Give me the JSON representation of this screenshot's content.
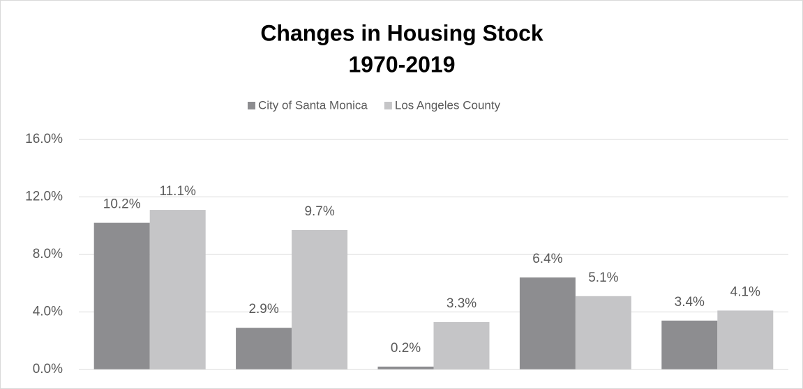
{
  "chart_data": {
    "type": "bar",
    "title": "Changes in Housing Stock",
    "subtitle": "1970-2019",
    "categories": [
      null,
      null,
      null,
      null,
      null
    ],
    "series": [
      {
        "name": "City of Santa Monica",
        "color": "#8d8d90",
        "values": [
          10.2,
          2.9,
          0.2,
          6.4,
          3.4
        ],
        "value_labels": [
          "10.2%",
          "2.9%",
          "0.2%",
          "6.4%",
          "3.4%"
        ]
      },
      {
        "name": "Los Angeles County",
        "color": "#c5c5c7",
        "values": [
          11.1,
          9.7,
          3.3,
          5.1,
          4.1
        ],
        "value_labels": [
          "11.1%",
          "9.7%",
          "3.3%",
          "5.1%",
          "4.1%"
        ]
      }
    ],
    "ylim": [
      0,
      16
    ],
    "yticks": [
      {
        "value": 0,
        "label": "0.0%"
      },
      {
        "value": 4,
        "label": "4.0%"
      },
      {
        "value": 8,
        "label": "8.0%"
      },
      {
        "value": 12,
        "label": "12.0%"
      },
      {
        "value": 16,
        "label": "16.0%"
      }
    ],
    "grid": true,
    "legend": "top"
  }
}
